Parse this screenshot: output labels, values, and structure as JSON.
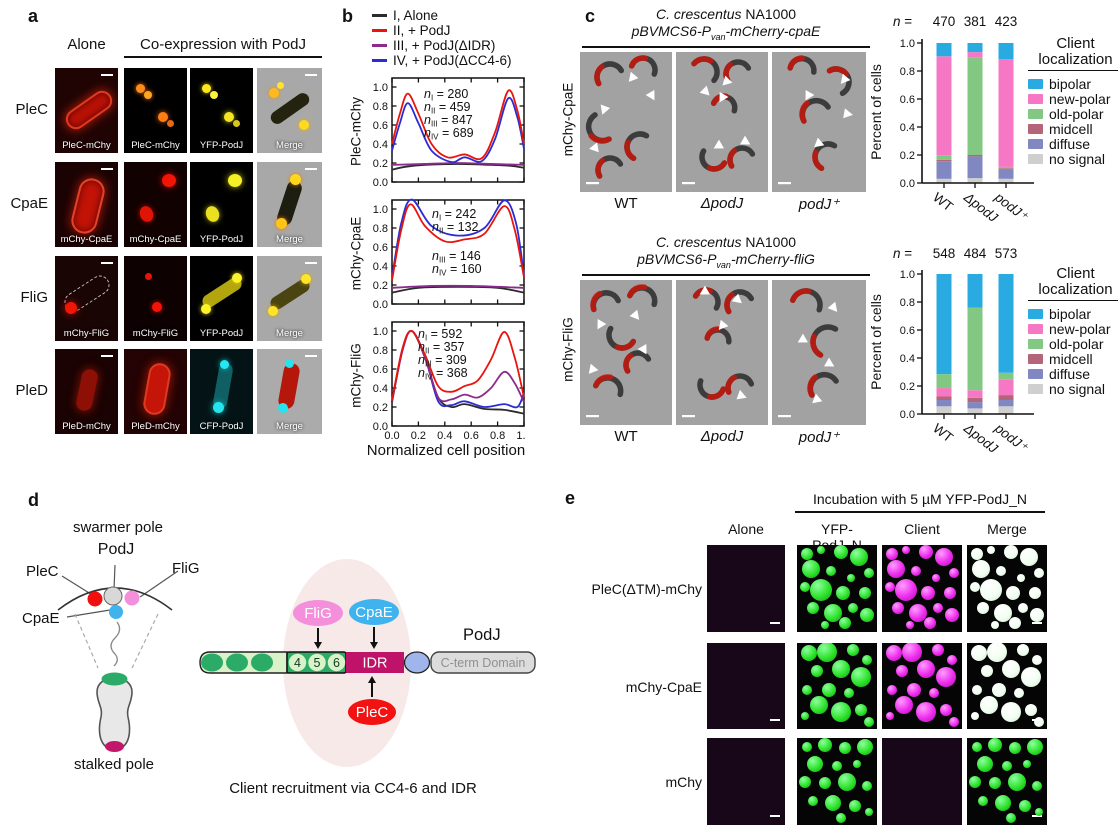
{
  "panel_labels": {
    "a": "a",
    "b": "b",
    "c": "c",
    "d": "d",
    "e": "e"
  },
  "panel_a": {
    "col_alone": "Alone",
    "col_co": "Co-expression with PodJ",
    "rows": [
      {
        "label": "PleC",
        "images": [
          "PleC-mChy",
          "PleC-mChy",
          "YFP-PodJ",
          "Merge"
        ]
      },
      {
        "label": "CpaE",
        "images": [
          "mChy-CpaE",
          "mChy-CpaE",
          "YFP-PodJ",
          "Merge"
        ]
      },
      {
        "label": "FliG",
        "images": [
          "mChy-FliG",
          "mChy-FliG",
          "YFP-PodJ",
          "Merge"
        ]
      },
      {
        "label": "PleD",
        "images": [
          "PleD-mChy",
          "PleD-mChy",
          "CFP-PodJ",
          "Merge"
        ]
      }
    ]
  },
  "panel_b": {
    "legend": [
      {
        "label": "I, Alone",
        "color": "#2b2b2b"
      },
      {
        "label": "II, + PodJ",
        "color": "#e8150d"
      },
      {
        "label": "III, + PodJ(ΔIDR)",
        "color": "#8d2a8d"
      },
      {
        "label": "IV, + PodJ(ΔCC4-6)",
        "color": "#2c2cd4"
      }
    ],
    "xlabel": "Normalized cell position"
  },
  "panel_c": {
    "top": {
      "title_italic": "C. crescentus",
      "title_normal": " NA1000",
      "plasmid_pre": "pBVMCS6-P",
      "plasmid_sub": "van",
      "plasmid_post": "-mCherry-cpaE",
      "side_label": "mChy-CpaE",
      "conditions": [
        {
          "label": "WT",
          "italic": false
        },
        {
          "label": "ΔpodJ",
          "italic": true
        },
        {
          "label": "podJ⁺",
          "italic": true
        }
      ],
      "n_sym": "n",
      "n_eq": "="
    },
    "bottom": {
      "title_italic": "C. crescentus",
      "title_normal": " NA1000",
      "plasmid_pre": "pBVMCS6-P",
      "plasmid_sub": "van",
      "plasmid_post": "-mCherry-fliG",
      "side_label": "mChy-FliG",
      "conditions": [
        {
          "label": "WT",
          "italic": false
        },
        {
          "label": "ΔpodJ",
          "italic": true
        },
        {
          "label": "podJ⁺",
          "italic": true
        }
      ],
      "n_sym": "n",
      "n_eq": "="
    },
    "ylabel": "Percent of cells",
    "legend_title1": "Client",
    "legend_title2": "localization",
    "legend": [
      {
        "label": "bipolar",
        "color": "#29abe2"
      },
      {
        "label": "new-polar",
        "color": "#f678c5"
      },
      {
        "label": "old-polar",
        "color": "#82c882"
      },
      {
        "label": "midcell",
        "color": "#b56578"
      },
      {
        "label": "diffuse",
        "color": "#8187c1"
      },
      {
        "label": "no signal",
        "color": "#cfcfcf"
      }
    ]
  },
  "panel_d": {
    "swarmer_pole": "swarmer pole",
    "stalked_pole": "stalked pole",
    "left": {
      "podj": "PodJ",
      "plec": "PleC",
      "flig": "FliG",
      "cpae": "CpaE"
    },
    "right": {
      "flig": "FliG",
      "cpae": "CpaE",
      "plec": "PleC",
      "podj": "PodJ",
      "num4": "4",
      "num5": "5",
      "num6": "6",
      "idr": "IDR",
      "cterm": "C-term Domain"
    },
    "caption": "Client recruitment via CC4-6 and IDR"
  },
  "panel_e": {
    "header": "Incubation with 5 µM YFP-PodJ_N",
    "cols": [
      "Alone",
      "YFP-PodJ_N",
      "Client",
      "Merge"
    ],
    "rows": [
      "PleC(ΔTM)-mChy",
      "mChy-CpaE",
      "mChy"
    ]
  },
  "chart_data": [
    {
      "id": "profile_plec",
      "type": "line",
      "ylabel": "PleC-mChy",
      "ylim": [
        0,
        1.05
      ],
      "yticks": [
        "0.0",
        "0.2",
        "0.4",
        "0.6",
        "0.8",
        "1.0"
      ],
      "annotations": [
        {
          "gx": 58,
          "gy": 24,
          "entries": [
            {
              "sub": "I",
              "text": "= 280"
            },
            {
              "sub": "II",
              "text": "= 459"
            },
            {
              "sub": "III",
              "text": "= 847"
            },
            {
              "sub": "IV",
              "text": "= 689"
            }
          ]
        }
      ],
      "series": [
        {
          "name": "I, Alone",
          "color": "#2b2b2b",
          "points": [
            [
              0,
              0.13
            ],
            [
              0.1,
              0.16
            ],
            [
              0.25,
              0.18
            ],
            [
              0.5,
              0.19
            ],
            [
              0.75,
              0.18
            ],
            [
              0.9,
              0.17
            ],
            [
              1,
              0.15
            ]
          ]
        },
        {
          "name": "III, + PodJ(ΔIDR)",
          "color": "#8d2a8d",
          "points": [
            [
              0,
              0.18
            ],
            [
              0.25,
              0.19
            ],
            [
              0.5,
              0.2
            ],
            [
              0.75,
              0.19
            ],
            [
              1,
              0.18
            ]
          ]
        },
        {
          "name": "IV, + PodJ(ΔCC4-6)",
          "color": "#2c2cd4",
          "points": [
            [
              0,
              0.33
            ],
            [
              0.06,
              0.62
            ],
            [
              0.12,
              0.83
            ],
            [
              0.2,
              0.62
            ],
            [
              0.3,
              0.33
            ],
            [
              0.45,
              0.21
            ],
            [
              0.55,
              0.26
            ],
            [
              0.68,
              0.22
            ],
            [
              0.78,
              0.45
            ],
            [
              0.88,
              0.88
            ],
            [
              0.95,
              0.68
            ],
            [
              1,
              0.35
            ]
          ]
        },
        {
          "name": "II, + PodJ",
          "color": "#e8150d",
          "points": [
            [
              0,
              0.4
            ],
            [
              0.06,
              0.72
            ],
            [
              0.12,
              0.93
            ],
            [
              0.2,
              0.72
            ],
            [
              0.3,
              0.4
            ],
            [
              0.42,
              0.26
            ],
            [
              0.55,
              0.29
            ],
            [
              0.68,
              0.25
            ],
            [
              0.78,
              0.52
            ],
            [
              0.88,
              0.96
            ],
            [
              0.95,
              0.75
            ],
            [
              1,
              0.4
            ]
          ]
        }
      ]
    },
    {
      "id": "profile_cpae",
      "type": "line",
      "ylabel": "mChy-CpaE",
      "ylim": [
        0,
        1.12
      ],
      "yticks": [
        "0.0",
        "0.2",
        "0.4",
        "0.6",
        "0.8",
        "1.0"
      ],
      "annotations": [
        {
          "gx": 66,
          "gy": 22,
          "entries": [
            {
              "sub": "I",
              "text": "= 242"
            },
            {
              "sub": "II",
              "text": "= 132"
            }
          ]
        },
        {
          "gx": 66,
          "gy": 64,
          "entries": [
            {
              "sub": "III",
              "text": "= 146"
            },
            {
              "sub": "IV",
              "text": "= 160"
            }
          ]
        }
      ],
      "series": [
        {
          "name": "I, Alone",
          "color": "#2b2b2b",
          "points": [
            [
              0,
              0.12
            ],
            [
              0.2,
              0.17
            ],
            [
              0.5,
              0.18
            ],
            [
              0.8,
              0.17
            ],
            [
              1,
              0.12
            ]
          ]
        },
        {
          "name": "III, + PodJ(ΔIDR)",
          "color": "#8d2a8d",
          "points": [
            [
              0,
              0.17
            ],
            [
              0.3,
              0.19
            ],
            [
              0.6,
              0.19
            ],
            [
              1,
              0.17
            ]
          ]
        },
        {
          "name": "IV, + PodJ(ΔCC4-6)",
          "color": "#2c2cd4",
          "points": [
            [
              0,
              0.28
            ],
            [
              0.07,
              0.85
            ],
            [
              0.15,
              1.1
            ],
            [
              0.3,
              0.82
            ],
            [
              0.5,
              0.72
            ],
            [
              0.7,
              0.8
            ],
            [
              0.85,
              1.09
            ],
            [
              0.94,
              0.85
            ],
            [
              1,
              0.3
            ]
          ]
        },
        {
          "name": "II, + PodJ",
          "color": "#e8150d",
          "points": [
            [
              0,
              0.25
            ],
            [
              0.07,
              0.78
            ],
            [
              0.14,
              1.05
            ],
            [
              0.25,
              0.82
            ],
            [
              0.4,
              0.66
            ],
            [
              0.55,
              0.68
            ],
            [
              0.7,
              0.74
            ],
            [
              0.85,
              1.03
            ],
            [
              0.93,
              0.78
            ],
            [
              1,
              0.28
            ]
          ]
        }
      ]
    },
    {
      "id": "profile_flig",
      "type": "line",
      "ylabel": "mChy-FliG",
      "ylim": [
        0,
        1.05
      ],
      "yticks": [
        "0.0",
        "0.2",
        "0.4",
        "0.6",
        "0.8",
        "1.0"
      ],
      "xticklabels": [
        "0.0",
        "0.2",
        "0.4",
        "0.6",
        "0.8",
        "1.0"
      ],
      "annotations": [
        {
          "gx": 52,
          "gy": 20,
          "entries": [
            {
              "sub": "I",
              "text": "= 592"
            },
            {
              "sub": "II",
              "text": "= 357"
            },
            {
              "sub": "III",
              "text": "= 309"
            },
            {
              "sub": "IV",
              "text": "= 368"
            }
          ]
        }
      ],
      "series": [
        {
          "name": "I, Alone",
          "color": "#2b2b2b",
          "points": [
            [
              0,
              0.25
            ],
            [
              0.08,
              0.8
            ],
            [
              0.15,
              1.0
            ],
            [
              0.25,
              0.72
            ],
            [
              0.35,
              0.3
            ],
            [
              0.45,
              0.2
            ],
            [
              0.55,
              0.23
            ],
            [
              0.7,
              0.18
            ],
            [
              0.85,
              0.17
            ],
            [
              1,
              0.13
            ]
          ]
        },
        {
          "name": "IV, + PodJ(ΔCC4-6)",
          "color": "#2c2cd4",
          "points": [
            [
              0,
              0.26
            ],
            [
              0.08,
              0.81
            ],
            [
              0.15,
              1.0
            ],
            [
              0.25,
              0.73
            ],
            [
              0.35,
              0.26
            ],
            [
              0.45,
              0.22
            ],
            [
              0.55,
              0.26
            ],
            [
              0.7,
              0.2
            ],
            [
              0.85,
              0.23
            ],
            [
              0.95,
              0.2
            ],
            [
              1,
              0.35
            ]
          ]
        },
        {
          "name": "III, + PodJ(ΔIDR)",
          "color": "#8d2a8d",
          "points": [
            [
              0,
              0.26
            ],
            [
              0.08,
              0.8
            ],
            [
              0.15,
              1.0
            ],
            [
              0.25,
              0.72
            ],
            [
              0.35,
              0.3
            ],
            [
              0.45,
              0.28
            ],
            [
              0.55,
              0.33
            ],
            [
              0.65,
              0.3
            ],
            [
              0.75,
              0.4
            ],
            [
              0.85,
              0.57
            ],
            [
              0.93,
              0.45
            ],
            [
              1,
              0.25
            ]
          ]
        },
        {
          "name": "II, + PodJ",
          "color": "#e8150d",
          "points": [
            [
              0,
              0.27
            ],
            [
              0.08,
              0.82
            ],
            [
              0.15,
              1.0
            ],
            [
              0.25,
              0.75
            ],
            [
              0.35,
              0.42
            ],
            [
              0.45,
              0.36
            ],
            [
              0.55,
              0.42
            ],
            [
              0.65,
              0.48
            ],
            [
              0.75,
              0.7
            ],
            [
              0.85,
              0.99
            ],
            [
              0.93,
              0.72
            ],
            [
              1,
              0.3
            ]
          ]
        }
      ]
    },
    {
      "id": "bars_cpae",
      "type": "stacked_bar",
      "title": "",
      "ylabel": "Percent of cells",
      "ylim": [
        0,
        1.0
      ],
      "n_values": [
        "470",
        "381",
        "423"
      ],
      "categories": [
        {
          "label": "WT",
          "italic": false
        },
        {
          "label": "ΔpodJ",
          "italic": true
        },
        {
          "label": "podJ⁺",
          "italic": true
        }
      ],
      "segments": [
        {
          "label": "no signal",
          "color": "#cfcfcf"
        },
        {
          "label": "diffuse",
          "color": "#8187c1"
        },
        {
          "label": "midcell",
          "color": "#b56578"
        },
        {
          "label": "old-polar",
          "color": "#82c882"
        },
        {
          "label": "new-polar",
          "color": "#f678c5"
        },
        {
          "label": "bipolar",
          "color": "#29abe2"
        }
      ],
      "values": [
        [
          0.03,
          0.125,
          0.01,
          0.03,
          0.71,
          0.095
        ],
        [
          0.035,
          0.155,
          0.01,
          0.695,
          0.04,
          0.065
        ],
        [
          0.03,
          0.065,
          0.01,
          0.01,
          0.77,
          0.115
        ]
      ]
    },
    {
      "id": "bars_flig",
      "type": "stacked_bar",
      "title": "",
      "ylabel": "Percent of cells",
      "ylim": [
        0,
        1.0
      ],
      "n_values": [
        "548",
        "484",
        "573"
      ],
      "categories": [
        {
          "label": "WT",
          "italic": false
        },
        {
          "label": "ΔpodJ",
          "italic": true
        },
        {
          "label": "podJ⁺",
          "italic": true
        }
      ],
      "segments": [
        {
          "label": "no signal",
          "color": "#cfcfcf"
        },
        {
          "label": "diffuse",
          "color": "#8187c1"
        },
        {
          "label": "midcell",
          "color": "#b56578"
        },
        {
          "label": "new-polar",
          "color": "#f678c5"
        },
        {
          "label": "old-polar",
          "color": "#82c882"
        },
        {
          "label": "bipolar",
          "color": "#29abe2"
        }
      ],
      "values": [
        [
          0.055,
          0.045,
          0.025,
          0.06,
          0.1,
          0.715
        ],
        [
          0.04,
          0.045,
          0.03,
          0.055,
          0.59,
          0.24
        ],
        [
          0.055,
          0.045,
          0.035,
          0.11,
          0.05,
          0.705
        ]
      ]
    }
  ]
}
